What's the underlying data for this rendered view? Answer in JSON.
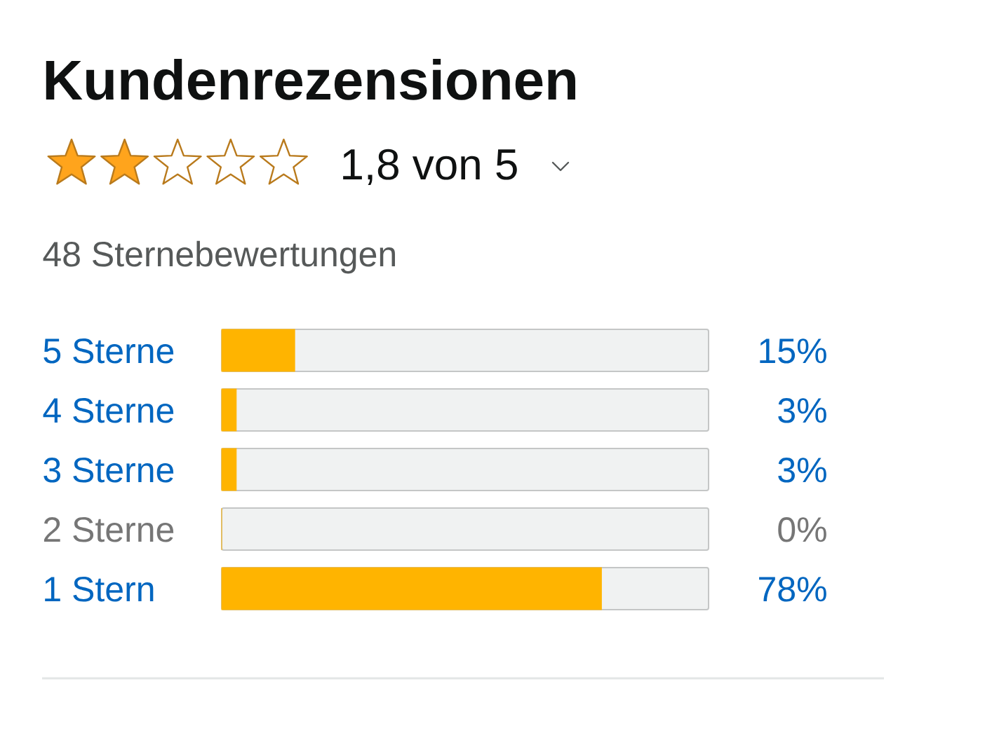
{
  "chart_data": {
    "type": "bar",
    "orientation": "horizontal",
    "title": "Kundenrezensionen",
    "subtitle": "1,8 von 5",
    "annotations": [
      "48 Sternebewertungen"
    ],
    "categories": [
      "5 Sterne",
      "4 Sterne",
      "3 Sterne",
      "2 Sterne",
      "1 Stern"
    ],
    "values": [
      15,
      3,
      3,
      0,
      78
    ],
    "value_labels": [
      "15%",
      "3%",
      "3%",
      "0%",
      "78%"
    ],
    "color": "#ffb400",
    "xlim": [
      0,
      100
    ],
    "tick_labels": "y"
  }
}
